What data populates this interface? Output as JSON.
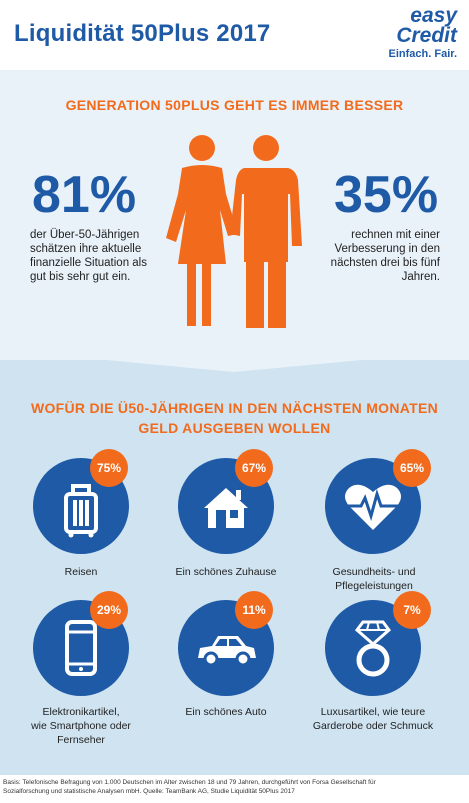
{
  "header": {
    "title": "Liquidität 50Plus 2017",
    "logo_easy": "easy",
    "logo_credit": "Credit",
    "logo_tagline": "Einfach. Fair."
  },
  "section1": {
    "title": "GENERATION 50PLUS GEHT ES IMMER BESSER",
    "left_value": "81%",
    "left_desc": [
      "der Über-50-Jährigen",
      "schätzen ihre aktuelle",
      "finanzielle Situation als",
      "gut bis sehr gut ein."
    ],
    "right_value": "35%",
    "right_desc": [
      "rechnen mit einer",
      "Verbesserung in den",
      "nächsten drei bis fünf",
      "Jahren."
    ]
  },
  "section2": {
    "title_line1": "WOFÜR DIE Ü50-JÄHRIGEN IN DEN NÄCHSTEN MONATEN",
    "title_line2": "GELD AUSGEBEN WOLLEN",
    "items": [
      {
        "label": [
          "Reisen"
        ],
        "percent": "75%",
        "icon": "suitcase-icon"
      },
      {
        "label": [
          "Ein schönes Zuhause"
        ],
        "percent": "67%",
        "icon": "house-icon"
      },
      {
        "label": [
          "Gesundheits- und Pflegeleistungen"
        ],
        "percent": "65%",
        "icon": "heart-pulse-icon"
      },
      {
        "label": [
          "Elektronikartikel,",
          "wie Smartphone oder",
          "Fernseher"
        ],
        "percent": "29%",
        "icon": "smartphone-icon"
      },
      {
        "label": [
          "Ein schönes Auto"
        ],
        "percent": "11%",
        "icon": "car-icon"
      },
      {
        "label": [
          "Luxusartikel, wie teure",
          "Garderobe oder Schmuck"
        ],
        "percent": "7%",
        "icon": "diamond-ring-icon"
      }
    ]
  },
  "footer": {
    "line1": "Basis: Telefonische Befragung von 1.000 Deutschen im Alter zwischen 18 und 79 Jahren, durchgeführt von Forsa Gesellschaft für",
    "line2": "Sozialforschung und statistische Analysen mbH. Quelle: TeamBank AG, Studie Liquidität 50Plus 2017"
  },
  "colors": {
    "blue": "#1f5aa6",
    "orange": "#f26b1d",
    "light_blue": "#e9f2f9",
    "mid_blue": "#cfe3f1"
  }
}
